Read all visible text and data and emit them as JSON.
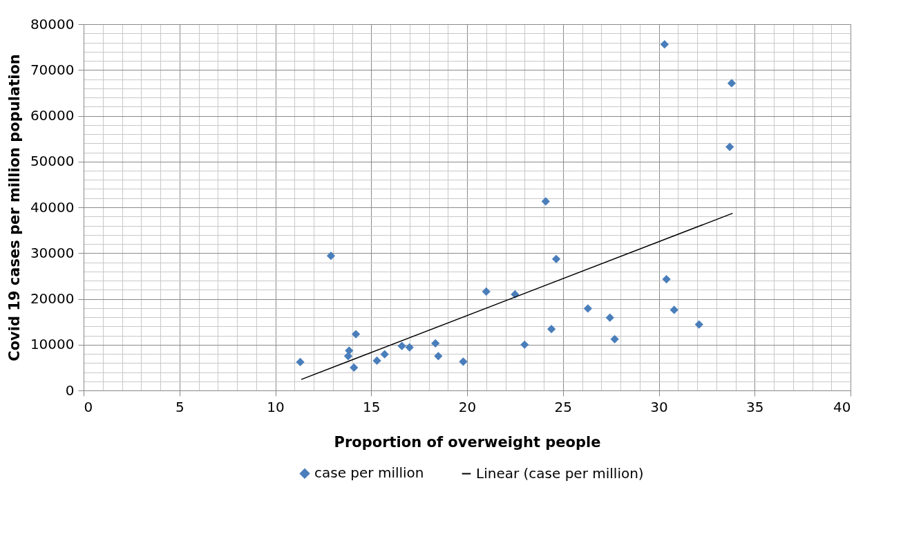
{
  "chart_data": {
    "type": "scatter",
    "xlabel": "Proportion of overweight people",
    "ylabel": "Covid 19 cases per million population",
    "xlim": [
      0,
      40
    ],
    "ylim": [
      0,
      80000
    ],
    "xticks": [
      0,
      {
        "value": 1,
        "label": null
      },
      {
        "value": 2,
        "label": null
      },
      {
        "value": 3,
        "label": null
      },
      {
        "value": 4,
        "label": null
      },
      5,
      {
        "value": 6,
        "label": null
      },
      {
        "value": 7,
        "label": null
      },
      {
        "value": 8,
        "label": null
      },
      {
        "value": 9,
        "label": null
      },
      10,
      {
        "value": 11,
        "label": null
      },
      {
        "value": 12,
        "label": null
      },
      {
        "value": 13,
        "label": null
      },
      {
        "value": 14,
        "label": null
      },
      15,
      {
        "value": 16,
        "label": null
      },
      {
        "value": 17,
        "label": null
      },
      {
        "value": 18,
        "label": null
      },
      {
        "value": 19,
        "label": null
      },
      20,
      {
        "value": 21,
        "label": null
      },
      {
        "value": 22,
        "label": null
      },
      {
        "value": 23,
        "label": null
      },
      {
        "value": 24,
        "label": null
      },
      25,
      {
        "value": 26,
        "label": null
      },
      {
        "value": 27,
        "label": null
      },
      {
        "value": 28,
        "label": null
      },
      {
        "value": 29,
        "label": null
      },
      30,
      {
        "value": 31,
        "label": null
      },
      {
        "value": 32,
        "label": null
      },
      {
        "value": 33,
        "label": null
      },
      {
        "value": 34,
        "label": null
      },
      35,
      {
        "value": 36,
        "label": null
      },
      {
        "value": 37,
        "label": null
      },
      {
        "value": 38,
        "label": null
      },
      {
        "value": 39,
        "label": null
      },
      40
    ],
    "yticks": [
      0,
      {
        "value": 2000,
        "label": null
      },
      {
        "value": 4000,
        "label": null
      },
      {
        "value": 6000,
        "label": null
      },
      {
        "value": 8000,
        "label": null
      },
      10000,
      {
        "value": 12000,
        "label": null
      },
      {
        "value": 14000,
        "label": null
      },
      {
        "value": 16000,
        "label": null
      },
      {
        "value": 18000,
        "label": null
      },
      20000,
      {
        "value": 22000,
        "label": null
      },
      {
        "value": 24000,
        "label": null
      },
      {
        "value": 26000,
        "label": null
      },
      {
        "value": 28000,
        "label": null
      },
      30000,
      {
        "value": 32000,
        "label": null
      },
      {
        "value": 34000,
        "label": null
      },
      {
        "value": 36000,
        "label": null
      },
      {
        "value": 38000,
        "label": null
      },
      40000,
      {
        "value": 42000,
        "label": null
      },
      {
        "value": 44000,
        "label": null
      },
      {
        "value": 46000,
        "label": null
      },
      {
        "value": 48000,
        "label": null
      },
      50000,
      {
        "value": 52000,
        "label": null
      },
      {
        "value": 54000,
        "label": null
      },
      {
        "value": 56000,
        "label": null
      },
      {
        "value": 58000,
        "label": null
      },
      60000,
      {
        "value": 62000,
        "label": null
      },
      {
        "value": 64000,
        "label": null
      },
      {
        "value": 66000,
        "label": null
      },
      {
        "value": 68000,
        "label": null
      },
      70000,
      {
        "value": 72000,
        "label": null
      },
      {
        "value": 74000,
        "label": null
      },
      {
        "value": 76000,
        "label": null
      },
      {
        "value": 78000,
        "label": null
      },
      80000
    ],
    "grid": true,
    "legend": "bottom",
    "marker": "diamond",
    "series": [
      {
        "name": "case per million",
        "type": "scatter",
        "color": "#4a7ebb",
        "x": [
          11.3,
          12.9,
          13.85,
          13.8,
          14.1,
          14.2,
          15.3,
          15.7,
          16.6,
          17.0,
          18.35,
          18.5,
          19.8,
          21.0,
          22.5,
          23.0,
          24.1,
          24.4,
          24.65,
          26.3,
          27.45,
          27.7,
          30.3,
          30.4,
          30.8,
          32.1,
          33.7,
          33.8
        ],
        "values": [
          6200,
          29400,
          8700,
          7500,
          5000,
          12300,
          6500,
          7900,
          9700,
          9400,
          10300,
          7500,
          6300,
          21600,
          21000,
          10000,
          41300,
          13400,
          28700,
          17900,
          15900,
          11200,
          75600,
          24300,
          17600,
          14400,
          53200,
          67100
        ]
      },
      {
        "name": "Linear (case per million)",
        "type": "line",
        "color": "#000000",
        "line_style": "solid",
        "marker": "none",
        "x": [
          11.35,
          33.85
        ],
        "values": [
          2400,
          38700
        ]
      }
    ]
  }
}
